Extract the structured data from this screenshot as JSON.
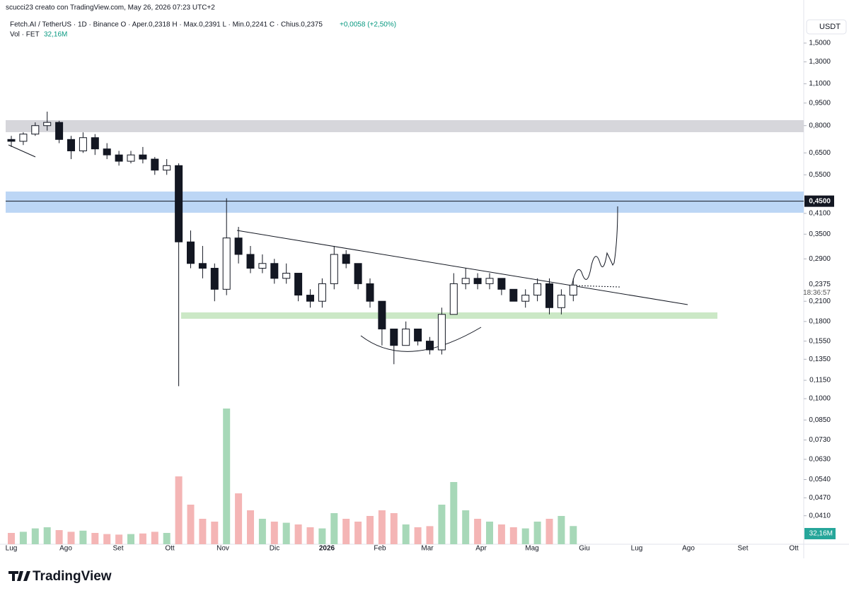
{
  "header": {
    "attribution": "scucci23 creato con TradingView.com, May 26, 2026 07:23 UTC+2",
    "legend": "Fetch.AI / TetherUS · 1D · Binance  O · Aper.0,2318  H · Max.0,2391  L · Min.0,2241  C · Chius.0,2375",
    "change": "+0,0058 (+2,50%)",
    "volume_name": "Vol · FET",
    "volume_value": "32,16M",
    "currency": "USDT"
  },
  "chart_data": {
    "type": "candlestick",
    "log_scale": true,
    "ylim": [
      0.033,
      1.87
    ],
    "yticks": [
      {
        "value": 1.5,
        "label": "1,5000"
      },
      {
        "value": 1.3,
        "label": "1,3000"
      },
      {
        "value": 1.1,
        "label": "1,1000"
      },
      {
        "value": 0.95,
        "label": "0,9500"
      },
      {
        "value": 0.8,
        "label": "0,8000"
      },
      {
        "value": 0.65,
        "label": "0,6500"
      },
      {
        "value": 0.55,
        "label": "0,5500"
      },
      {
        "value": 0.41,
        "label": "0,4100"
      },
      {
        "value": 0.35,
        "label": "0,3500"
      },
      {
        "value": 0.29,
        "label": "0,2900"
      },
      {
        "value": 0.21,
        "label": "0,2100"
      },
      {
        "value": 0.18,
        "label": "0,1800"
      },
      {
        "value": 0.155,
        "label": "0,1550"
      },
      {
        "value": 0.135,
        "label": "0,1350"
      },
      {
        "value": 0.115,
        "label": "0,1150"
      },
      {
        "value": 0.1,
        "label": "0,1000"
      },
      {
        "value": 0.085,
        "label": "0,0850"
      },
      {
        "value": 0.073,
        "label": "0,0730"
      },
      {
        "value": 0.063,
        "label": "0,0630"
      },
      {
        "value": 0.054,
        "label": "0,0540"
      },
      {
        "value": 0.047,
        "label": "0,0470"
      },
      {
        "value": 0.041,
        "label": "0,0410"
      }
    ],
    "x_labels": [
      "Lug",
      "Ago",
      "Set",
      "Ott",
      "Nov",
      "Dic",
      "2026",
      "Feb",
      "Mar",
      "Apr",
      "Mag",
      "Giu",
      "Lug",
      "Ago",
      "Set",
      "Ott"
    ],
    "open": [
      0.72,
      0.71,
      0.75,
      0.8,
      0.82,
      0.72,
      0.66,
      0.73,
      0.67,
      0.64,
      0.61,
      0.64,
      0.62,
      0.57,
      0.59,
      0.33,
      0.28,
      0.27,
      0.23,
      0.34,
      0.3,
      0.27,
      0.28,
      0.25,
      0.26,
      0.22,
      0.21,
      0.24,
      0.3,
      0.28,
      0.24,
      0.21,
      0.17,
      0.15,
      0.17,
      0.155,
      0.145,
      0.19,
      0.24,
      0.25,
      0.24,
      0.25,
      0.23,
      0.21,
      0.22,
      0.24,
      0.2,
      0.22
    ],
    "high": [
      0.74,
      0.76,
      0.82,
      0.89,
      0.83,
      0.74,
      0.76,
      0.75,
      0.7,
      0.66,
      0.66,
      0.68,
      0.63,
      0.62,
      0.6,
      0.36,
      0.32,
      0.28,
      0.46,
      0.37,
      0.32,
      0.3,
      0.29,
      0.28,
      0.26,
      0.23,
      0.25,
      0.32,
      0.31,
      0.28,
      0.25,
      0.21,
      0.17,
      0.18,
      0.17,
      0.16,
      0.2,
      0.26,
      0.27,
      0.26,
      0.26,
      0.25,
      0.23,
      0.23,
      0.25,
      0.25,
      0.23,
      0.25
    ],
    "low": [
      0.68,
      0.69,
      0.74,
      0.77,
      0.7,
      0.62,
      0.65,
      0.64,
      0.62,
      0.59,
      0.6,
      0.6,
      0.55,
      0.55,
      0.11,
      0.27,
      0.25,
      0.21,
      0.22,
      0.28,
      0.26,
      0.26,
      0.24,
      0.24,
      0.21,
      0.2,
      0.2,
      0.23,
      0.27,
      0.23,
      0.2,
      0.15,
      0.13,
      0.15,
      0.15,
      0.14,
      0.14,
      0.19,
      0.23,
      0.23,
      0.23,
      0.22,
      0.21,
      0.2,
      0.21,
      0.19,
      0.19,
      0.21
    ],
    "close": [
      0.71,
      0.75,
      0.8,
      0.82,
      0.72,
      0.66,
      0.73,
      0.67,
      0.64,
      0.61,
      0.64,
      0.62,
      0.57,
      0.59,
      0.33,
      0.28,
      0.27,
      0.23,
      0.34,
      0.3,
      0.27,
      0.28,
      0.25,
      0.26,
      0.22,
      0.21,
      0.24,
      0.3,
      0.28,
      0.24,
      0.21,
      0.17,
      0.15,
      0.17,
      0.155,
      0.145,
      0.19,
      0.24,
      0.25,
      0.24,
      0.25,
      0.23,
      0.21,
      0.22,
      0.24,
      0.2,
      0.22,
      0.2375
    ],
    "price_line": {
      "value": 0.45,
      "label": "0,4500"
    },
    "last_price": {
      "value": 0.2375,
      "label": "0,2375",
      "countdown": "18:36:57"
    },
    "volume": {
      "vlim": [
        0,
        250
      ],
      "values": [
        20,
        22,
        28,
        30,
        25,
        22,
        24,
        20,
        18,
        17,
        18,
        19,
        22,
        20,
        120,
        70,
        45,
        40,
        240,
        90,
        60,
        45,
        40,
        38,
        35,
        30,
        28,
        55,
        45,
        40,
        50,
        60,
        55,
        35,
        30,
        32,
        70,
        110,
        60,
        45,
        40,
        35,
        30,
        28,
        40,
        45,
        50,
        32.16
      ],
      "last_label": "32,16M"
    }
  },
  "footer": {
    "brand": "TradingView"
  }
}
